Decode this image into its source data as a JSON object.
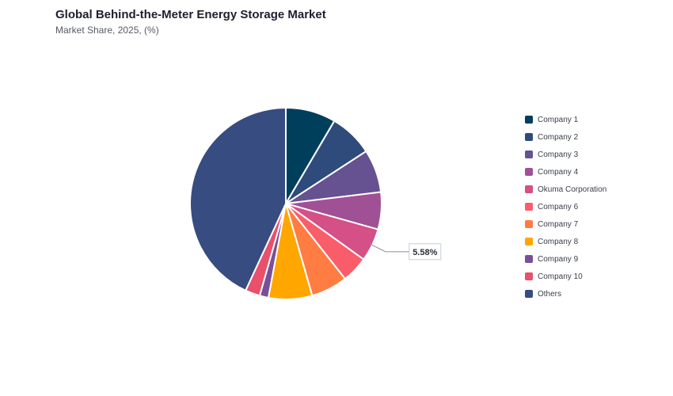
{
  "title": "Global Behind-the-Meter Energy Storage Market",
  "subtitle": "Market Share, 2025, (%)",
  "chart_data": {
    "type": "pie",
    "categories": [
      "Company 1",
      "Company 2",
      "Company 3",
      "Company 4",
      "Okuma Corporation",
      "Company 6",
      "Company 7",
      "Company 8",
      "Company 9",
      "Company 10",
      "Others"
    ],
    "values": [
      8.5,
      7.4,
      7.3,
      6.3,
      5.58,
      4.5,
      6.2,
      7.4,
      1.5,
      2.5,
      43.32
    ],
    "colors": [
      "#003f5c",
      "#2f4b7c",
      "#665191",
      "#a05195",
      "#d45087",
      "#f95d6a",
      "#ff7c43",
      "#ffa600",
      "#7a4f9a",
      "#e8506b",
      "#374c80"
    ],
    "annotations": [
      {
        "category": "Okuma Corporation",
        "label": "5.58%"
      }
    ],
    "legend_position": "right",
    "start_angle_deg": 0,
    "direction": "clockwise"
  }
}
